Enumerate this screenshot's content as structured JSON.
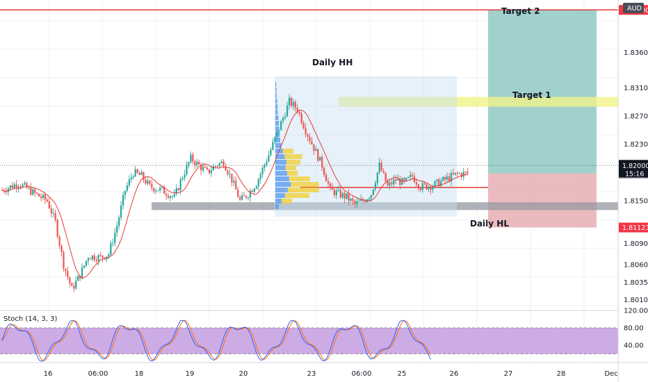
{
  "chart_data": {
    "type": "candlestick",
    "price_axis": {
      "ticks": [
        "1.84200",
        "1.83600",
        "1.83100",
        "1.82700",
        "1.82300",
        "1.82000",
        "1.81888",
        "1.81500",
        "1.81123",
        "1.80900",
        "1.80600",
        "1.80350",
        "1.80100"
      ],
      "currency_badge": "AUD",
      "countdown": "15:16",
      "current_price": "1.82000",
      "top_tag": "1.84200",
      "last_price": "1.81888",
      "stop_tag": "1.81123"
    },
    "time_axis": {
      "labels": [
        "16",
        "06:00",
        "18",
        "19",
        "20",
        "23",
        "06:00",
        "25",
        "26",
        "27",
        "28",
        "Dec"
      ]
    },
    "annotations": {
      "daily_hh": "Daily HH",
      "daily_hl": "Daily HL",
      "target_1": "Target 1",
      "target_2": "Target 2"
    },
    "levels": {
      "target_2": 1.842,
      "target_1_low": 1.8283,
      "target_1_high": 1.8297,
      "entry": 1.81888,
      "stop": 1.81123,
      "support_low": 1.8137,
      "support_high": 1.8148,
      "poc": 1.8169
    },
    "ylim": [
      1.7995,
      1.8434
    ],
    "candle_count": 228,
    "price_path": [
      [
        0,
        1.8165
      ],
      [
        8,
        1.8175
      ],
      [
        16,
        1.816
      ],
      [
        22,
        1.815
      ],
      [
        26,
        1.812
      ],
      [
        30,
        1.806
      ],
      [
        34,
        1.8025
      ],
      [
        38,
        1.8045
      ],
      [
        42,
        1.8072
      ],
      [
        48,
        1.807
      ],
      [
        52,
        1.8075
      ],
      [
        56,
        1.8115
      ],
      [
        60,
        1.8165
      ],
      [
        64,
        1.819
      ],
      [
        68,
        1.8185
      ],
      [
        72,
        1.817
      ],
      [
        78,
        1.8165
      ],
      [
        84,
        1.8155
      ],
      [
        88,
        1.8185
      ],
      [
        92,
        1.821
      ],
      [
        96,
        1.82
      ],
      [
        100,
        1.819
      ],
      [
        104,
        1.82
      ],
      [
        108,
        1.8205
      ],
      [
        112,
        1.818
      ],
      [
        116,
        1.815
      ],
      [
        120,
        1.816
      ],
      [
        124,
        1.8175
      ],
      [
        130,
        1.8215
      ],
      [
        136,
        1.826
      ],
      [
        140,
        1.829
      ],
      [
        144,
        1.828
      ],
      [
        148,
        1.825
      ],
      [
        152,
        1.8225
      ],
      [
        156,
        1.82
      ],
      [
        160,
        1.8165
      ],
      [
        164,
        1.816
      ],
      [
        168,
        1.8155
      ],
      [
        172,
        1.8145
      ],
      [
        176,
        1.815
      ],
      [
        180,
        1.816
      ],
      [
        184,
        1.82
      ],
      [
        188,
        1.817
      ],
      [
        192,
        1.818
      ],
      [
        196,
        1.8175
      ],
      [
        200,
        1.8185
      ],
      [
        204,
        1.817
      ],
      [
        210,
        1.8172
      ],
      [
        216,
        1.818
      ],
      [
        222,
        1.8188
      ],
      [
        227,
        1.81888
      ]
    ],
    "stochastic": {
      "title": "Stoch (14, 3, 3)",
      "ylim": [
        0,
        120
      ],
      "ticks": [
        "120.00",
        "80.00",
        "40.00"
      ],
      "band": [
        20,
        80
      ],
      "k_color": "#2962ff",
      "d_color": "#ff6d00"
    },
    "colors": {
      "up": "#26a69a",
      "down": "#ef5350",
      "ma": "#e53935",
      "target_zone": "#8fc9c4",
      "stop_zone": "#e8aeb3",
      "target_1_band": "#f0f28a",
      "support_band": "#9598a1",
      "top_line": "#e53935",
      "stoch_band": "#c8a2e2",
      "profile_blue": "#5b9cf0",
      "profile_yellow": "#f2d13a",
      "profile_box": "#c8dff2",
      "badge_dark": "#4a4e59",
      "tag_red": "#f23645",
      "tag_gray": "#787b86",
      "tag_black": "#131722"
    }
  }
}
